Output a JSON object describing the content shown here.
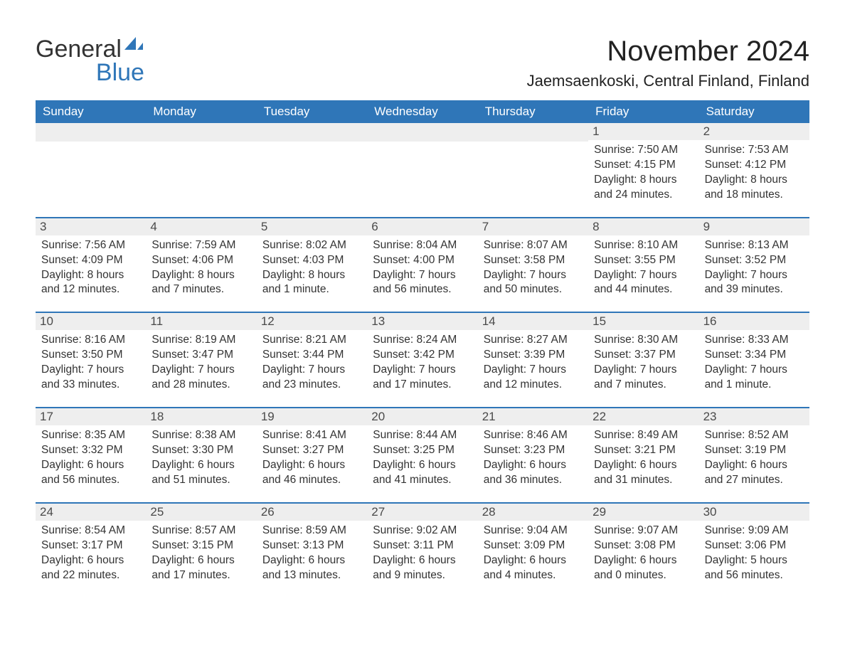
{
  "logo": {
    "word1": "General",
    "word2": "Blue",
    "color1": "#333333",
    "color2": "#2f76b8"
  },
  "title": "November 2024",
  "location": "Jaemsaenkoski, Central Finland, Finland",
  "colors": {
    "header_bg": "#2f76b8",
    "header_text": "#ffffff",
    "date_bar_bg": "#eeeeee",
    "date_bar_border": "#2f76b8",
    "body_text": "#333333",
    "background": "#ffffff"
  },
  "typography": {
    "title_fontsize": 40,
    "location_fontsize": 22,
    "dayheader_fontsize": 17,
    "date_fontsize": 17,
    "cell_fontsize": 15.5
  },
  "day_headers": [
    "Sunday",
    "Monday",
    "Tuesday",
    "Wednesday",
    "Thursday",
    "Friday",
    "Saturday"
  ],
  "weeks": [
    [
      null,
      null,
      null,
      null,
      null,
      {
        "date": "1",
        "sunrise": "Sunrise: 7:50 AM",
        "sunset": "Sunset: 4:15 PM",
        "day1": "Daylight: 8 hours",
        "day2": "and 24 minutes."
      },
      {
        "date": "2",
        "sunrise": "Sunrise: 7:53 AM",
        "sunset": "Sunset: 4:12 PM",
        "day1": "Daylight: 8 hours",
        "day2": "and 18 minutes."
      }
    ],
    [
      {
        "date": "3",
        "sunrise": "Sunrise: 7:56 AM",
        "sunset": "Sunset: 4:09 PM",
        "day1": "Daylight: 8 hours",
        "day2": "and 12 minutes."
      },
      {
        "date": "4",
        "sunrise": "Sunrise: 7:59 AM",
        "sunset": "Sunset: 4:06 PM",
        "day1": "Daylight: 8 hours",
        "day2": "and 7 minutes."
      },
      {
        "date": "5",
        "sunrise": "Sunrise: 8:02 AM",
        "sunset": "Sunset: 4:03 PM",
        "day1": "Daylight: 8 hours",
        "day2": "and 1 minute."
      },
      {
        "date": "6",
        "sunrise": "Sunrise: 8:04 AM",
        "sunset": "Sunset: 4:00 PM",
        "day1": "Daylight: 7 hours",
        "day2": "and 56 minutes."
      },
      {
        "date": "7",
        "sunrise": "Sunrise: 8:07 AM",
        "sunset": "Sunset: 3:58 PM",
        "day1": "Daylight: 7 hours",
        "day2": "and 50 minutes."
      },
      {
        "date": "8",
        "sunrise": "Sunrise: 8:10 AM",
        "sunset": "Sunset: 3:55 PM",
        "day1": "Daylight: 7 hours",
        "day2": "and 44 minutes."
      },
      {
        "date": "9",
        "sunrise": "Sunrise: 8:13 AM",
        "sunset": "Sunset: 3:52 PM",
        "day1": "Daylight: 7 hours",
        "day2": "and 39 minutes."
      }
    ],
    [
      {
        "date": "10",
        "sunrise": "Sunrise: 8:16 AM",
        "sunset": "Sunset: 3:50 PM",
        "day1": "Daylight: 7 hours",
        "day2": "and 33 minutes."
      },
      {
        "date": "11",
        "sunrise": "Sunrise: 8:19 AM",
        "sunset": "Sunset: 3:47 PM",
        "day1": "Daylight: 7 hours",
        "day2": "and 28 minutes."
      },
      {
        "date": "12",
        "sunrise": "Sunrise: 8:21 AM",
        "sunset": "Sunset: 3:44 PM",
        "day1": "Daylight: 7 hours",
        "day2": "and 23 minutes."
      },
      {
        "date": "13",
        "sunrise": "Sunrise: 8:24 AM",
        "sunset": "Sunset: 3:42 PM",
        "day1": "Daylight: 7 hours",
        "day2": "and 17 minutes."
      },
      {
        "date": "14",
        "sunrise": "Sunrise: 8:27 AM",
        "sunset": "Sunset: 3:39 PM",
        "day1": "Daylight: 7 hours",
        "day2": "and 12 minutes."
      },
      {
        "date": "15",
        "sunrise": "Sunrise: 8:30 AM",
        "sunset": "Sunset: 3:37 PM",
        "day1": "Daylight: 7 hours",
        "day2": "and 7 minutes."
      },
      {
        "date": "16",
        "sunrise": "Sunrise: 8:33 AM",
        "sunset": "Sunset: 3:34 PM",
        "day1": "Daylight: 7 hours",
        "day2": "and 1 minute."
      }
    ],
    [
      {
        "date": "17",
        "sunrise": "Sunrise: 8:35 AM",
        "sunset": "Sunset: 3:32 PM",
        "day1": "Daylight: 6 hours",
        "day2": "and 56 minutes."
      },
      {
        "date": "18",
        "sunrise": "Sunrise: 8:38 AM",
        "sunset": "Sunset: 3:30 PM",
        "day1": "Daylight: 6 hours",
        "day2": "and 51 minutes."
      },
      {
        "date": "19",
        "sunrise": "Sunrise: 8:41 AM",
        "sunset": "Sunset: 3:27 PM",
        "day1": "Daylight: 6 hours",
        "day2": "and 46 minutes."
      },
      {
        "date": "20",
        "sunrise": "Sunrise: 8:44 AM",
        "sunset": "Sunset: 3:25 PM",
        "day1": "Daylight: 6 hours",
        "day2": "and 41 minutes."
      },
      {
        "date": "21",
        "sunrise": "Sunrise: 8:46 AM",
        "sunset": "Sunset: 3:23 PM",
        "day1": "Daylight: 6 hours",
        "day2": "and 36 minutes."
      },
      {
        "date": "22",
        "sunrise": "Sunrise: 8:49 AM",
        "sunset": "Sunset: 3:21 PM",
        "day1": "Daylight: 6 hours",
        "day2": "and 31 minutes."
      },
      {
        "date": "23",
        "sunrise": "Sunrise: 8:52 AM",
        "sunset": "Sunset: 3:19 PM",
        "day1": "Daylight: 6 hours",
        "day2": "and 27 minutes."
      }
    ],
    [
      {
        "date": "24",
        "sunrise": "Sunrise: 8:54 AM",
        "sunset": "Sunset: 3:17 PM",
        "day1": "Daylight: 6 hours",
        "day2": "and 22 minutes."
      },
      {
        "date": "25",
        "sunrise": "Sunrise: 8:57 AM",
        "sunset": "Sunset: 3:15 PM",
        "day1": "Daylight: 6 hours",
        "day2": "and 17 minutes."
      },
      {
        "date": "26",
        "sunrise": "Sunrise: 8:59 AM",
        "sunset": "Sunset: 3:13 PM",
        "day1": "Daylight: 6 hours",
        "day2": "and 13 minutes."
      },
      {
        "date": "27",
        "sunrise": "Sunrise: 9:02 AM",
        "sunset": "Sunset: 3:11 PM",
        "day1": "Daylight: 6 hours",
        "day2": "and 9 minutes."
      },
      {
        "date": "28",
        "sunrise": "Sunrise: 9:04 AM",
        "sunset": "Sunset: 3:09 PM",
        "day1": "Daylight: 6 hours",
        "day2": "and 4 minutes."
      },
      {
        "date": "29",
        "sunrise": "Sunrise: 9:07 AM",
        "sunset": "Sunset: 3:08 PM",
        "day1": "Daylight: 6 hours",
        "day2": "and 0 minutes."
      },
      {
        "date": "30",
        "sunrise": "Sunrise: 9:09 AM",
        "sunset": "Sunset: 3:06 PM",
        "day1": "Daylight: 5 hours",
        "day2": "and 56 minutes."
      }
    ]
  ]
}
